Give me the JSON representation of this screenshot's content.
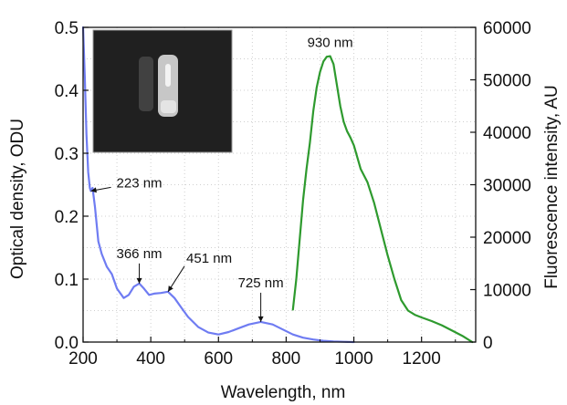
{
  "chart_data": {
    "type": "line",
    "xlabel": "Wavelength, nm",
    "ylabel_left": "Optical density, ODU",
    "ylabel_right": "Fluorescence intensity, AU",
    "xlim": [
      200,
      1360
    ],
    "ylim_left": [
      0,
      0.5
    ],
    "ylim_right": [
      0,
      60000
    ],
    "x_ticks": [
      200,
      400,
      600,
      800,
      1000,
      1200
    ],
    "y_ticks_left": [
      0.0,
      0.1,
      0.2,
      0.3,
      0.4,
      0.5
    ],
    "y_ticks_right": [
      0,
      10000,
      20000,
      30000,
      40000,
      50000,
      60000
    ],
    "x_tick_labels": [
      "200",
      "400",
      "600",
      "800",
      "1000",
      "1200"
    ],
    "y_tick_labels_left": [
      "0.0",
      "0.1",
      "0.2",
      "0.3",
      "0.4",
      "0.5"
    ],
    "y_tick_labels_right": [
      "0",
      "10000",
      "20000",
      "30000",
      "40000",
      "50000",
      "60000"
    ],
    "grid": true,
    "series": [
      {
        "axis": "left",
        "color": "#6f7cf2",
        "x": [
          200,
          205,
          210,
          215,
          220,
          223,
          228,
          235,
          245,
          255,
          270,
          285,
          300,
          320,
          335,
          350,
          366,
          380,
          395,
          410,
          430,
          451,
          470,
          490,
          510,
          540,
          570,
          600,
          630,
          660,
          690,
          725,
          760,
          790,
          820,
          850,
          880,
          910,
          940,
          970,
          1000
        ],
        "y": [
          0.5,
          0.42,
          0.33,
          0.27,
          0.245,
          0.24,
          0.245,
          0.215,
          0.16,
          0.14,
          0.12,
          0.108,
          0.085,
          0.07,
          0.075,
          0.088,
          0.093,
          0.085,
          0.075,
          0.077,
          0.078,
          0.08,
          0.07,
          0.055,
          0.04,
          0.024,
          0.015,
          0.012,
          0.016,
          0.022,
          0.028,
          0.032,
          0.028,
          0.02,
          0.012,
          0.007,
          0.004,
          0.002,
          0.001,
          0.0005,
          0.0
        ]
      },
      {
        "axis": "right",
        "color": "#2e9a2e",
        "x": [
          820,
          830,
          840,
          850,
          860,
          870,
          880,
          890,
          900,
          910,
          920,
          930,
          940,
          950,
          960,
          970,
          980,
          990,
          1000,
          1020,
          1040,
          1060,
          1080,
          1100,
          1120,
          1140,
          1160,
          1180,
          1200,
          1230,
          1260,
          1290,
          1320,
          1350
        ],
        "y": [
          6200,
          12000,
          19500,
          27000,
          33000,
          38000,
          44000,
          48500,
          51500,
          53500,
          54400,
          54500,
          53000,
          49000,
          45000,
          42000,
          40200,
          39000,
          37500,
          33000,
          30500,
          26500,
          21500,
          16500,
          12000,
          8000,
          6000,
          5200,
          4700,
          4000,
          3200,
          2200,
          1200,
          0
        ]
      }
    ],
    "annotations": [
      {
        "text": "223 nm",
        "x": 223,
        "y": 0.24
      },
      {
        "text": "366 nm",
        "x": 366,
        "y": 0.093
      },
      {
        "text": "451 nm",
        "x": 451,
        "y": 0.08
      },
      {
        "text": "725 nm",
        "x": 725,
        "y": 0.032
      },
      {
        "text": "930 nm",
        "x": 930,
        "y": 54500
      }
    ]
  }
}
